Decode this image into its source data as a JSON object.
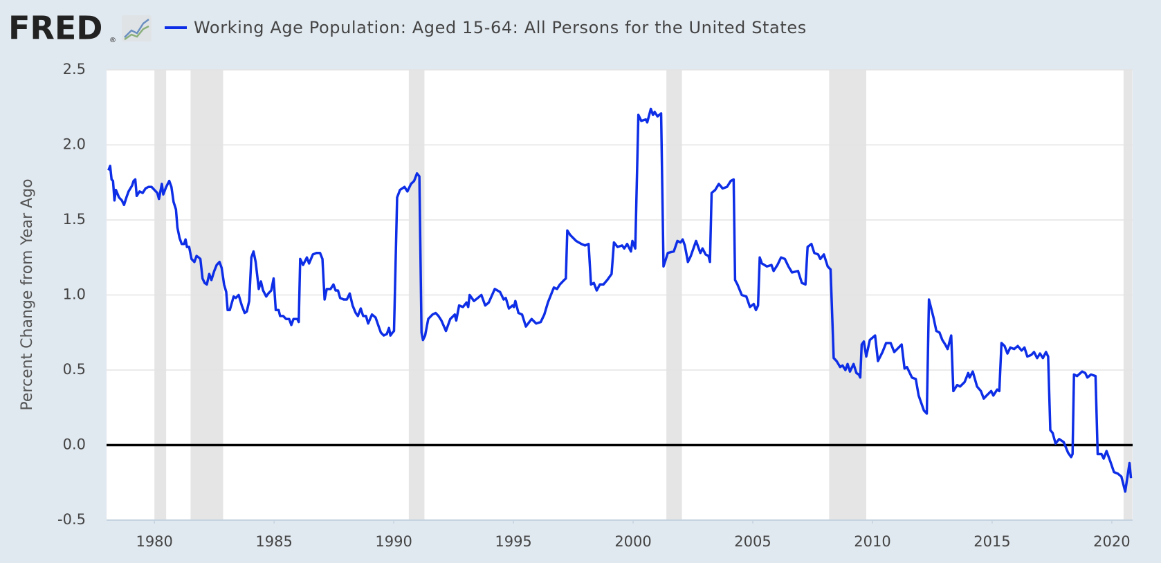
{
  "brand": "FRED",
  "brand_mark": "®",
  "chart_data": {
    "type": "line",
    "ylabel": "Percent Change from Year Ago",
    "xlim": [
      1978,
      2020.87
    ],
    "ylim": [
      -0.5,
      2.5
    ],
    "xticks": [
      1980,
      1985,
      1990,
      1995,
      2000,
      2005,
      2010,
      2015,
      2020
    ],
    "yticks": [
      -0.5,
      {
        "value": 0,
        "label": "0.0"
      },
      0.5,
      {
        "value": 1,
        "label": "1.0"
      },
      1.5,
      {
        "value": 2,
        "label": "2.0"
      },
      2.5
    ],
    "grid": true,
    "recessions": [
      [
        1980.0,
        1980.49
      ],
      [
        1981.51,
        1982.87
      ],
      [
        1990.63,
        1991.28
      ],
      [
        2001.39,
        2002.04
      ],
      [
        2008.19,
        2009.74
      ],
      [
        2020.49,
        2020.86
      ]
    ],
    "x": [
      1978.08,
      1978.15,
      1978.21,
      1978.27,
      1978.33,
      1978.39,
      1978.52,
      1978.64,
      1978.73,
      1978.83,
      1978.92,
      1979.07,
      1979.13,
      1979.2,
      1979.26,
      1979.38,
      1979.51,
      1979.63,
      1979.75,
      1979.88,
      1980.0,
      1980.12,
      1980.19,
      1980.31,
      1980.37,
      1980.49,
      1980.62,
      1980.71,
      1980.8,
      1980.9,
      1980.96,
      1981.05,
      1981.14,
      1981.24,
      1981.3,
      1981.36,
      1981.45,
      1981.55,
      1981.67,
      1981.76,
      1981.85,
      1981.92,
      1982.01,
      1982.1,
      1982.19,
      1982.29,
      1982.38,
      1982.5,
      1982.6,
      1982.72,
      1982.81,
      1982.91,
      1983.0,
      1983.06,
      1983.15,
      1983.31,
      1983.4,
      1983.52,
      1983.65,
      1983.77,
      1983.86,
      1983.96,
      1984.05,
      1984.14,
      1984.23,
      1984.36,
      1984.45,
      1984.54,
      1984.67,
      1984.76,
      1984.88,
      1984.98,
      1985.07,
      1985.19,
      1985.25,
      1985.38,
      1985.5,
      1985.63,
      1985.72,
      1985.81,
      1985.97,
      1986.03,
      1986.09,
      1986.21,
      1986.37,
      1986.46,
      1986.62,
      1986.77,
      1986.92,
      1987.02,
      1987.11,
      1987.2,
      1987.36,
      1987.48,
      1987.57,
      1987.67,
      1987.76,
      1987.91,
      1988.04,
      1988.16,
      1988.28,
      1988.41,
      1988.5,
      1988.62,
      1988.72,
      1988.84,
      1988.93,
      1989.09,
      1989.24,
      1989.37,
      1989.46,
      1989.58,
      1989.71,
      1989.8,
      1989.86,
      1989.95,
      1990.01,
      1990.14,
      1990.26,
      1990.45,
      1990.57,
      1990.72,
      1990.85,
      1990.97,
      1991.07,
      1991.16,
      1991.22,
      1991.31,
      1991.44,
      1991.62,
      1991.75,
      1991.87,
      1991.99,
      1992.18,
      1992.36,
      1992.55,
      1992.61,
      1992.73,
      1992.89,
      1993.04,
      1993.11,
      1993.17,
      1993.35,
      1993.51,
      1993.66,
      1993.82,
      1993.97,
      1994.22,
      1994.44,
      1994.59,
      1994.68,
      1994.81,
      1994.96,
      1995.02,
      1995.08,
      1995.21,
      1995.36,
      1995.52,
      1995.76,
      1995.95,
      1996.14,
      1996.29,
      1996.44,
      1996.69,
      1996.82,
      1996.94,
      1997.12,
      1997.19,
      1997.25,
      1997.37,
      1997.62,
      1997.84,
      1997.99,
      1998.14,
      1998.24,
      1998.36,
      1998.48,
      1998.61,
      1998.76,
      1998.92,
      1999.1,
      1999.2,
      1999.35,
      1999.54,
      1999.63,
      1999.75,
      1999.91,
      1999.97,
      2000.09,
      2000.22,
      2000.34,
      2000.53,
      2000.59,
      2000.74,
      2000.83,
      2000.9,
      2001.02,
      2001.17,
      2001.27,
      2001.45,
      2001.7,
      2001.85,
      2001.98,
      2002.07,
      2002.16,
      2002.29,
      2002.41,
      2002.63,
      2002.81,
      2002.9,
      2003.03,
      2003.15,
      2003.21,
      2003.28,
      2003.43,
      2003.58,
      2003.74,
      2003.92,
      2004.08,
      2004.2,
      2004.26,
      2004.36,
      2004.54,
      2004.73,
      2004.88,
      2005.04,
      2005.13,
      2005.22,
      2005.29,
      2005.38,
      2005.59,
      2005.78,
      2005.87,
      2006.03,
      2006.18,
      2006.34,
      2006.49,
      2006.64,
      2006.89,
      2007.05,
      2007.2,
      2007.29,
      2007.45,
      2007.57,
      2007.73,
      2007.82,
      2007.97,
      2008.13,
      2008.25,
      2008.38,
      2008.5,
      2008.65,
      2008.75,
      2008.87,
      2008.96,
      2009.06,
      2009.21,
      2009.33,
      2009.43,
      2009.49,
      2009.55,
      2009.64,
      2009.74,
      2009.89,
      2010.11,
      2010.23,
      2010.42,
      2010.57,
      2010.76,
      2010.91,
      2011.22,
      2011.34,
      2011.44,
      2011.65,
      2011.81,
      2011.93,
      2012.15,
      2012.27,
      2012.36,
      2012.55,
      2012.67,
      2012.8,
      2012.92,
      2013.04,
      2013.14,
      2013.29,
      2013.38,
      2013.54,
      2013.66,
      2013.85,
      2014.0,
      2014.06,
      2014.19,
      2014.37,
      2014.53,
      2014.65,
      2014.77,
      2014.96,
      2015.05,
      2015.21,
      2015.3,
      2015.39,
      2015.52,
      2015.64,
      2015.76,
      2015.92,
      2016.07,
      2016.23,
      2016.35,
      2016.47,
      2016.63,
      2016.75,
      2016.88,
      2017.0,
      2017.12,
      2017.25,
      2017.34,
      2017.43,
      2017.53,
      2017.65,
      2017.8,
      2017.99,
      2018.17,
      2018.3,
      2018.36,
      2018.42,
      2018.55,
      2018.76,
      2018.89,
      2018.98,
      2019.13,
      2019.32,
      2019.41,
      2019.57,
      2019.66,
      2019.78,
      2019.94,
      2020.09,
      2020.25,
      2020.4,
      2020.56,
      2020.74,
      2020.8
    ],
    "series": [
      {
        "name": "Working Age Population: Aged 15-64: All Persons for the United States",
        "color": "#0d2ee6",
        "values": [
          1.83,
          1.86,
          1.77,
          1.76,
          1.63,
          1.7,
          1.65,
          1.63,
          1.6,
          1.65,
          1.69,
          1.73,
          1.76,
          1.77,
          1.66,
          1.69,
          1.68,
          1.71,
          1.72,
          1.72,
          1.7,
          1.68,
          1.64,
          1.74,
          1.67,
          1.72,
          1.76,
          1.72,
          1.62,
          1.57,
          1.45,
          1.38,
          1.34,
          1.34,
          1.37,
          1.32,
          1.32,
          1.24,
          1.22,
          1.26,
          1.25,
          1.24,
          1.11,
          1.08,
          1.07,
          1.14,
          1.1,
          1.16,
          1.2,
          1.22,
          1.18,
          1.07,
          1.02,
          0.9,
          0.9,
          0.99,
          0.98,
          1.0,
          0.93,
          0.88,
          0.89,
          0.96,
          1.25,
          1.29,
          1.22,
          1.04,
          1.09,
          1.03,
          0.99,
          1.01,
          1.03,
          1.11,
          0.9,
          0.9,
          0.86,
          0.86,
          0.84,
          0.84,
          0.8,
          0.84,
          0.84,
          0.82,
          1.24,
          1.2,
          1.25,
          1.21,
          1.27,
          1.28,
          1.28,
          1.24,
          0.97,
          1.04,
          1.04,
          1.07,
          1.03,
          1.03,
          0.98,
          0.97,
          0.97,
          1.01,
          0.93,
          0.88,
          0.86,
          0.91,
          0.86,
          0.86,
          0.81,
          0.87,
          0.85,
          0.79,
          0.75,
          0.73,
          0.74,
          0.78,
          0.73,
          0.75,
          0.76,
          1.65,
          1.7,
          1.72,
          1.69,
          1.74,
          1.76,
          1.81,
          1.79,
          0.75,
          0.7,
          0.73,
          0.84,
          0.87,
          0.88,
          0.86,
          0.83,
          0.76,
          0.84,
          0.87,
          0.83,
          0.93,
          0.92,
          0.95,
          0.92,
          1.0,
          0.96,
          0.98,
          1.0,
          0.93,
          0.95,
          1.04,
          1.02,
          0.97,
          0.98,
          0.91,
          0.93,
          0.92,
          0.96,
          0.88,
          0.87,
          0.79,
          0.84,
          0.81,
          0.82,
          0.87,
          0.95,
          1.05,
          1.04,
          1.07,
          1.1,
          1.11,
          1.43,
          1.4,
          1.36,
          1.34,
          1.33,
          1.34,
          1.07,
          1.08,
          1.03,
          1.07,
          1.07,
          1.1,
          1.14,
          1.35,
          1.32,
          1.33,
          1.31,
          1.34,
          1.29,
          1.36,
          1.31,
          2.2,
          2.16,
          2.17,
          2.15,
          2.24,
          2.2,
          2.22,
          2.19,
          2.21,
          1.19,
          1.28,
          1.29,
          1.36,
          1.35,
          1.37,
          1.33,
          1.22,
          1.26,
          1.36,
          1.28,
          1.31,
          1.27,
          1.26,
          1.22,
          1.68,
          1.7,
          1.74,
          1.71,
          1.72,
          1.76,
          1.77,
          1.1,
          1.07,
          1.0,
          0.99,
          0.92,
          0.94,
          0.9,
          0.93,
          1.25,
          1.21,
          1.19,
          1.2,
          1.16,
          1.2,
          1.25,
          1.24,
          1.19,
          1.15,
          1.16,
          1.08,
          1.07,
          1.32,
          1.34,
          1.28,
          1.27,
          1.24,
          1.27,
          1.19,
          1.17,
          0.58,
          0.56,
          0.52,
          0.53,
          0.5,
          0.54,
          0.49,
          0.54,
          0.48,
          0.47,
          0.45,
          0.67,
          0.69,
          0.59,
          0.7,
          0.73,
          0.56,
          0.62,
          0.68,
          0.68,
          0.62,
          0.67,
          0.51,
          0.52,
          0.45,
          0.44,
          0.33,
          0.23,
          0.21,
          0.97,
          0.85,
          0.76,
          0.75,
          0.7,
          0.67,
          0.64,
          0.73,
          0.36,
          0.4,
          0.39,
          0.42,
          0.48,
          0.45,
          0.49,
          0.39,
          0.36,
          0.31,
          0.33,
          0.36,
          0.33,
          0.37,
          0.36,
          0.68,
          0.66,
          0.61,
          0.65,
          0.64,
          0.66,
          0.63,
          0.65,
          0.59,
          0.6,
          0.62,
          0.58,
          0.61,
          0.58,
          0.62,
          0.59,
          0.1,
          0.08,
          0.01,
          0.04,
          0.02,
          -0.05,
          -0.08,
          -0.06,
          0.47,
          0.46,
          0.49,
          0.48,
          0.45,
          0.47,
          0.46,
          -0.06,
          -0.06,
          -0.09,
          -0.04,
          -0.11,
          -0.18,
          -0.19,
          -0.21,
          -0.31,
          -0.12,
          -0.22
        ]
      }
    ]
  }
}
